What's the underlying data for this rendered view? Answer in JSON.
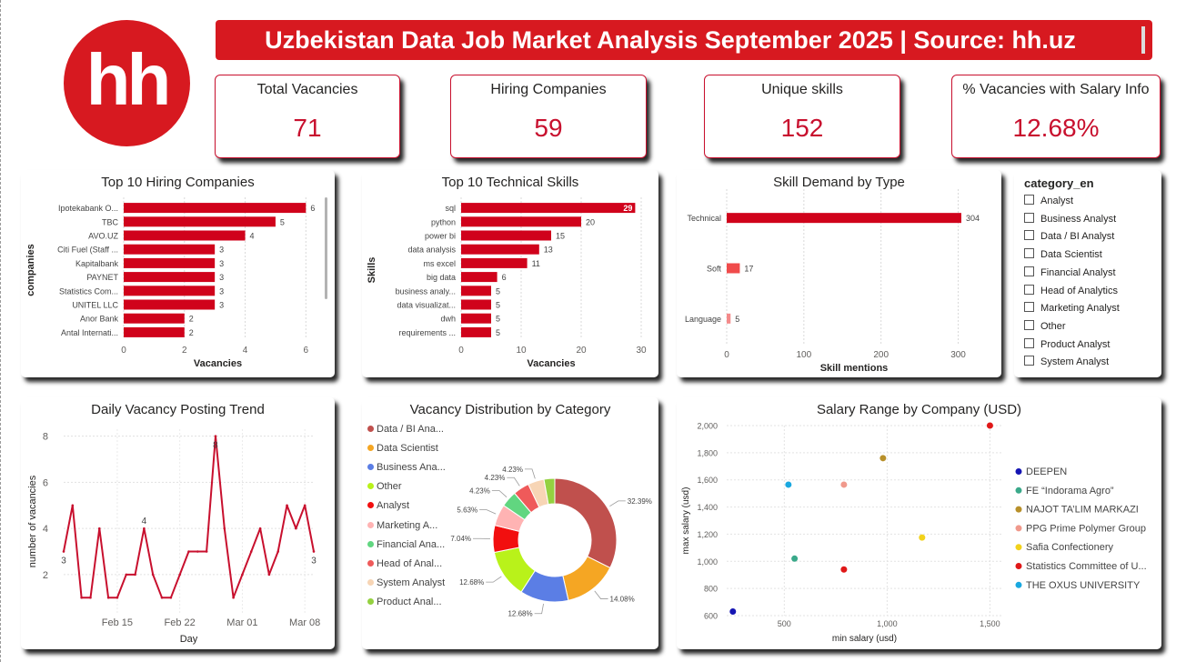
{
  "header": {
    "logo_text": "hh",
    "title": "Uzbekistan Data Job Market Analysis September 2025 | Source: hh.uz"
  },
  "kpis": [
    {
      "label": "Total Vacancies",
      "value": "71"
    },
    {
      "label": "Hiring Companies",
      "value": "59"
    },
    {
      "label": "Unique skills",
      "value": "152"
    },
    {
      "label": "% Vacancies with Salary Info",
      "value": "12.68%"
    }
  ],
  "colors": {
    "accent": "#d71920",
    "bar": "#d0021b",
    "line": "#c8102e",
    "kpi_value": "#c8102e"
  },
  "slicer": {
    "title": "category_en",
    "items": [
      "Analyst",
      "Business Analyst",
      "Data / BI Analyst",
      "Data Scientist",
      "Financial Analyst",
      "Head of Analytics",
      "Marketing Analyst",
      "Other",
      "Product Analyst",
      "System Analyst"
    ]
  },
  "chart_data": [
    {
      "type": "bar",
      "orientation": "horizontal",
      "title": "Top 10 Hiring Companies",
      "xlabel": "Vacancies",
      "ylabel": "companies",
      "categories": [
        "Ipotekabank O...",
        "TBC",
        "AVO.UZ",
        "Citi Fuel (Staff ...",
        "Kapitalbank",
        "PAYNET",
        "Statistics Com...",
        "UNITEL LLC",
        "Anor Bank",
        "Antal Internati..."
      ],
      "values": [
        6,
        5,
        4,
        3,
        3,
        3,
        3,
        3,
        2,
        2
      ],
      "xlim": [
        0,
        6.2
      ],
      "xticks": [
        0,
        2,
        4,
        6
      ]
    },
    {
      "type": "bar",
      "orientation": "horizontal",
      "title": "Top 10 Technical Skills",
      "xlabel": "Vacancies",
      "ylabel": "Skills",
      "categories": [
        "sql",
        "python",
        "power bi",
        "data analysis",
        "ms excel",
        "big data",
        "business analy...",
        "data visualizat...",
        "dwh",
        "requirements ..."
      ],
      "values": [
        29,
        20,
        15,
        13,
        11,
        6,
        5,
        5,
        5,
        5
      ],
      "xlim": [
        0,
        30
      ],
      "xticks": [
        0,
        10,
        20,
        30
      ]
    },
    {
      "type": "bar",
      "orientation": "horizontal",
      "title": "Skill Demand by Type",
      "xlabel": "Skill mentions",
      "categories": [
        "Technical",
        "Soft",
        "Language"
      ],
      "values": [
        304,
        17,
        5
      ],
      "xlim": [
        0,
        330
      ],
      "xticks": [
        0,
        100,
        200,
        300
      ]
    },
    {
      "type": "line",
      "title": "Daily Vacancy Posting Trend",
      "xlabel": "Day",
      "ylabel": "number of vacancies",
      "x": [
        "Feb 9",
        "Feb 10",
        "Feb 11",
        "Feb 12",
        "Feb 13",
        "Feb 14",
        "Feb 15",
        "Feb 16",
        "Feb 17",
        "Feb 18",
        "Feb 19",
        "Feb 20",
        "Feb 21",
        "Feb 22",
        "Feb 23",
        "Feb 24",
        "Feb 25",
        "Feb 26",
        "Feb 27",
        "Feb 28",
        "Mar 01",
        "Mar 02",
        "Mar 03",
        "Mar 04",
        "Mar 05",
        "Mar 06",
        "Mar 07",
        "Mar 08",
        "Mar 09"
      ],
      "y": [
        3,
        5,
        1,
        1,
        4,
        1,
        1,
        2,
        2,
        4,
        2,
        1,
        1,
        2,
        3,
        3,
        3,
        8,
        4,
        1,
        2,
        3,
        4,
        2,
        3,
        5,
        4,
        5,
        3
      ],
      "point_labels": {
        "Feb 9": "3",
        "Feb 18": "4",
        "Feb 26": "8",
        "Mar 09": "3"
      },
      "xticks": [
        "Feb 15",
        "Feb 22",
        "Mar 01",
        "Mar 08"
      ],
      "yticks": [
        2,
        4,
        6,
        8
      ],
      "ylim": [
        0.3,
        8.3
      ]
    },
    {
      "type": "pie",
      "donut": true,
      "title": "Vacancy Distribution by Category",
      "legend": "left",
      "legend_labels": [
        "Data / BI Ana...",
        "Data Scientist",
        "Business Ana...",
        "Other",
        "Analyst",
        "Marketing A...",
        "Financial Ana...",
        "Head of Anal...",
        "System Analyst",
        "Product Anal..."
      ],
      "values": [
        32.39,
        14.08,
        12.68,
        12.68,
        7.04,
        5.63,
        4.23,
        4.23,
        4.23,
        2.82
      ],
      "data_labels": [
        "32.39%",
        "14.08%",
        "12.68%",
        "12.68%",
        "7.04%",
        "5.63%",
        "4.23%",
        "4.23%",
        "4.23%",
        ""
      ],
      "colors": [
        "#c0504d",
        "#f5a623",
        "#5b7ee5",
        "#b9f21a",
        "#f20f0f",
        "#ffb3b3",
        "#61d680",
        "#ef5a5a",
        "#f7d5b5",
        "#94d140"
      ]
    },
    {
      "type": "scatter",
      "title": "Salary Range by Company (USD)",
      "xlabel": "min salary (usd)",
      "ylabel": "max salary (usd)",
      "xlim": [
        220,
        1560
      ],
      "ylim": [
        600,
        2000
      ],
      "xticks": [
        500,
        1000,
        1500
      ],
      "yticks": [
        600,
        800,
        1000,
        1200,
        1400,
        1600,
        1800,
        2000
      ],
      "ytick_labels": [
        "600",
        "800",
        "1,000",
        "1,200",
        "1,400",
        "1,600",
        "1,800",
        "2,000"
      ],
      "xtick_labels": [
        "500",
        "1,000",
        "1,500"
      ],
      "legend": "right",
      "series": [
        {
          "name": "DEEPEN",
          "color": "#1515b3",
          "points": [
            [
              250,
              630
            ]
          ]
        },
        {
          "name": "FE “Indorama Agro”",
          "color": "#3aa98a",
          "points": [
            [
              550,
              1020
            ]
          ]
        },
        {
          "name": "NAJOT TA’LIM MARKAZI",
          "color": "#b8902a",
          "points": [
            [
              980,
              1760
            ]
          ]
        },
        {
          "name": "PPG Prime Polymer Group",
          "color": "#f0998c",
          "points": [
            [
              790,
              1565
            ]
          ]
        },
        {
          "name": "Safia Confectionery",
          "color": "#f2d21b",
          "points": [
            [
              1170,
              1175
            ]
          ]
        },
        {
          "name": "Statistics Committee of U...",
          "color": "#e01818",
          "points": [
            [
              790,
              940
            ],
            [
              1500,
              2000
            ]
          ]
        },
        {
          "name": "THE OXUS UNIVERSITY",
          "color": "#19a8e0",
          "points": [
            [
              520,
              1565
            ]
          ]
        }
      ]
    }
  ]
}
